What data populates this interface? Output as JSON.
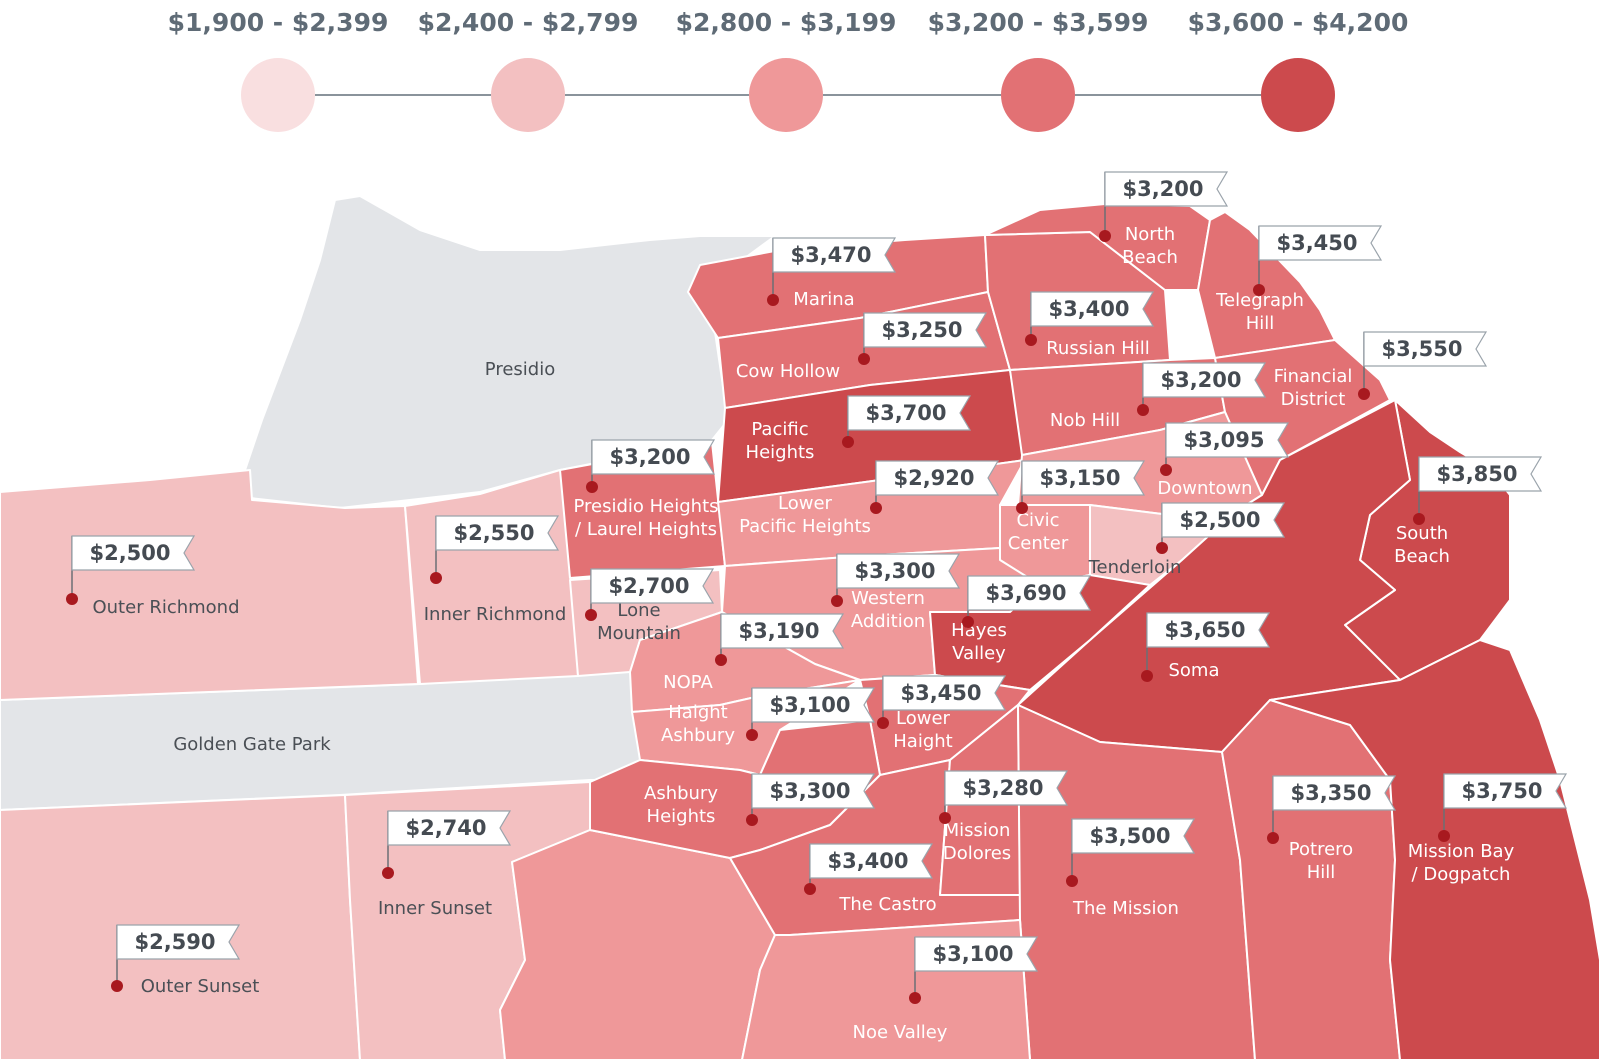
{
  "legend": [
    {
      "label": "$1,900 - $2,399",
      "color": "#f9dfe0"
    },
    {
      "label": "$2,400 - $2,799",
      "color": "#f3c0c1"
    },
    {
      "label": "$2,800 - $3,199",
      "color": "#ef9899"
    },
    {
      "label": "$3,200 - $3,599",
      "color": "#e27174"
    },
    {
      "label": "$3,600 - $4,200",
      "color": "#cc4a4d"
    }
  ],
  "parks": {
    "presidio": "Presidio",
    "golden_gate_park": "Golden Gate Park",
    "color": "#e3e5e8"
  },
  "neighborhoods": [
    {
      "id": "marina",
      "name": [
        "Marina"
      ],
      "price": "$3,470"
    },
    {
      "id": "north-beach",
      "name": [
        "North",
        "Beach"
      ],
      "price": "$3,200"
    },
    {
      "id": "telegraph-hill",
      "name": [
        "Telegraph",
        "Hill"
      ],
      "price": "$3,450"
    },
    {
      "id": "russian-hill",
      "name": [
        "Russian Hill"
      ],
      "price": "$3,400"
    },
    {
      "id": "cow-hollow",
      "name": [
        "Cow Hollow"
      ],
      "price": "$3,250"
    },
    {
      "id": "financial-district",
      "name": [
        "Financial",
        "District"
      ],
      "price": "$3,550"
    },
    {
      "id": "nob-hill",
      "name": [
        "Nob Hill"
      ],
      "price": "$3,200"
    },
    {
      "id": "pacific-heights",
      "name": [
        "Pacific",
        "Heights"
      ],
      "price": "$3,700"
    },
    {
      "id": "downtown",
      "name": [
        "Downtown"
      ],
      "price": "$3,095"
    },
    {
      "id": "south-beach",
      "name": [
        "South",
        "Beach"
      ],
      "price": "$3,850"
    },
    {
      "id": "presidio-heights",
      "name": [
        "Presidio Heights",
        "/ Laurel Heights"
      ],
      "price": "$3,200"
    },
    {
      "id": "lower-pacific-heights",
      "name": [
        "Lower",
        "Pacific Heights"
      ],
      "price": "$2,920"
    },
    {
      "id": "civic-center",
      "name": [
        "Civic",
        "Center"
      ],
      "price": "$3,150"
    },
    {
      "id": "tenderloin",
      "name": [
        "Tenderloin"
      ],
      "price": "$2,500"
    },
    {
      "id": "outer-richmond",
      "name": [
        "Outer Richmond"
      ],
      "price": "$2,500"
    },
    {
      "id": "inner-richmond",
      "name": [
        "Inner Richmond"
      ],
      "price": "$2,550"
    },
    {
      "id": "lone-mountain",
      "name": [
        "Lone",
        "Mountain"
      ],
      "price": "$2,700"
    },
    {
      "id": "western-addition",
      "name": [
        "Western",
        "Addition"
      ],
      "price": "$3,300"
    },
    {
      "id": "hayes-valley",
      "name": [
        "Hayes",
        "Valley"
      ],
      "price": "$3,690"
    },
    {
      "id": "soma",
      "name": [
        "Soma"
      ],
      "price": "$3,650"
    },
    {
      "id": "nopa",
      "name": [
        "NOPA"
      ],
      "price": "$3,190"
    },
    {
      "id": "haight-ashbury",
      "name": [
        "Haight",
        "Ashbury"
      ],
      "price": "$3,100"
    },
    {
      "id": "lower-haight",
      "name": [
        "Lower",
        "Haight"
      ],
      "price": "$3,450"
    },
    {
      "id": "ashbury-heights",
      "name": [
        "Ashbury",
        "Heights"
      ],
      "price": "$3,300"
    },
    {
      "id": "mission-dolores",
      "name": [
        "Mission",
        "Dolores"
      ],
      "price": "$3,280"
    },
    {
      "id": "potrero-hill",
      "name": [
        "Potrero",
        "Hill"
      ],
      "price": "$3,350"
    },
    {
      "id": "mission-bay",
      "name": [
        "Mission Bay",
        "/ Dogpatch"
      ],
      "price": "$3,750"
    },
    {
      "id": "the-mission",
      "name": [
        "The Mission"
      ],
      "price": "$3,500"
    },
    {
      "id": "the-castro",
      "name": [
        "The Castro"
      ],
      "price": "$3,400"
    },
    {
      "id": "inner-sunset",
      "name": [
        "Inner Sunset"
      ],
      "price": "$2,740"
    },
    {
      "id": "outer-sunset",
      "name": [
        "Outer Sunset"
      ],
      "price": "$2,590"
    },
    {
      "id": "noe-valley",
      "name": [
        "Noe Valley"
      ],
      "price": "$3,100"
    }
  ]
}
